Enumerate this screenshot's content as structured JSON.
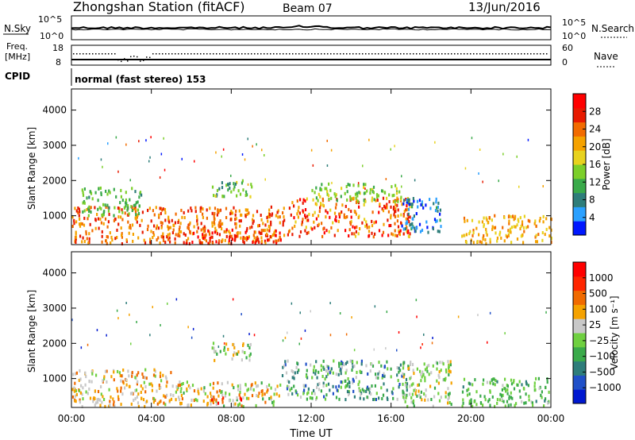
{
  "header": {
    "station": "Zhongshan Station (fitACF)",
    "beam": "Beam 07",
    "date": "13/Jun/2016"
  },
  "noise_panel": {
    "left_label": "N.Sky",
    "right_label": "N.Search",
    "left_ticks": [
      "10^5",
      "10^0"
    ],
    "right_ticks": [
      "10^5",
      "10^0"
    ]
  },
  "freq_panel": {
    "left_label_1": "Freq.",
    "left_label_2": "[MHz]",
    "right_label": "Nave",
    "left_ticks": [
      "18",
      "8"
    ],
    "right_ticks": [
      "60",
      "0"
    ]
  },
  "cpid": {
    "label": "CPID",
    "mode": "normal (fast stereo) 153"
  },
  "colors": {
    "power_scale": [
      "#0018ff",
      "#2aa0ff",
      "#2e7d7a",
      "#3aaa4a",
      "#7ccf2a",
      "#e8d21e",
      "#f5a200",
      "#f26b00",
      "#e81a00",
      "#ff0000"
    ],
    "velocity_scale": [
      "#0018d0",
      "#2050c8",
      "#2e7d7a",
      "#3aaa4a",
      "#6fd040",
      "#c8c8c8",
      "#f5a200",
      "#f06a00",
      "#ff2600",
      "#ff0000"
    ]
  },
  "chart_data": [
    {
      "type": "heatmap",
      "name": "power",
      "xlabel": "Time UT",
      "ylabel": "Slant Range [km]",
      "x_ticks": [
        "00:00",
        "04:00",
        "08:00",
        "12:00",
        "16:00",
        "20:00",
        "00:00"
      ],
      "x_tick_hours": [
        0,
        4,
        8,
        12,
        16,
        20,
        24
      ],
      "y_ticks": [
        "1000",
        "2000",
        "3000",
        "4000"
      ],
      "ylim": [
        180,
        4600
      ],
      "colorbar": {
        "label": "Power [dB]",
        "tick_labels": [
          "28",
          "24",
          "20",
          "16",
          "12",
          "8",
          "4"
        ],
        "range": [
          0,
          32
        ]
      },
      "echo_regions": [
        {
          "t0": 0.0,
          "t1": 11.0,
          "r0": 200,
          "r1": 1250,
          "level": 24,
          "scatter": 0.5
        },
        {
          "t0": 0.5,
          "t1": 3.5,
          "r0": 1000,
          "r1": 1800,
          "level": 12,
          "scatter": 0.3
        },
        {
          "t0": 5.5,
          "t1": 10.5,
          "r0": 200,
          "r1": 600,
          "level": 28,
          "scatter": 0.8
        },
        {
          "t0": 7.0,
          "t1": 9.0,
          "r0": 1500,
          "r1": 2000,
          "level": 12,
          "scatter": 0.6
        },
        {
          "t0": 11.0,
          "t1": 17.0,
          "r0": 400,
          "r1": 1500,
          "level": 24,
          "scatter": 0.7
        },
        {
          "t0": 12.0,
          "t1": 16.5,
          "r0": 1400,
          "r1": 1900,
          "level": 14,
          "scatter": 0.4
        },
        {
          "t0": 16.5,
          "t1": 18.5,
          "r0": 500,
          "r1": 1500,
          "level": 6,
          "scatter": 0.5
        },
        {
          "t0": 19.5,
          "t1": 24.0,
          "r0": 200,
          "r1": 1000,
          "level": 20,
          "scatter": 0.4
        }
      ]
    },
    {
      "type": "heatmap",
      "name": "velocity",
      "xlabel": "Time UT",
      "ylabel": "Slant Range [km]",
      "x_ticks": [
        "00:00",
        "04:00",
        "08:00",
        "12:00",
        "16:00",
        "20:00",
        "00:00"
      ],
      "x_tick_hours": [
        0,
        4,
        8,
        12,
        16,
        20,
        24
      ],
      "y_ticks": [
        "1000",
        "2000",
        "3000",
        "4000"
      ],
      "ylim": [
        180,
        4600
      ],
      "colorbar": {
        "label": "Velocity [m s⁻¹]",
        "tick_labels": [
          "1000",
          "500",
          "100",
          "25",
          "−25",
          "−100",
          "−500",
          "−1000"
        ],
        "range": [
          -1200,
          1200
        ]
      },
      "echo_regions": [
        {
          "t0": 0.0,
          "t1": 5.0,
          "r0": 200,
          "r1": 1250,
          "level": 300,
          "scatter": 0.5
        },
        {
          "t0": 5.0,
          "t1": 10.5,
          "r0": 200,
          "r1": 900,
          "level": 150,
          "scatter": 0.6
        },
        {
          "t0": 6.5,
          "t1": 8.5,
          "r0": 300,
          "r1": 500,
          "level": 900,
          "scatter": 0.7
        },
        {
          "t0": 7.0,
          "t1": 9.0,
          "r0": 1500,
          "r1": 2000,
          "level": 0,
          "scatter": 0.6
        },
        {
          "t0": 10.5,
          "t1": 17.0,
          "r0": 400,
          "r1": 1500,
          "level": -300,
          "scatter": 0.7
        },
        {
          "t0": 16.5,
          "t1": 19.0,
          "r0": 200,
          "r1": 1500,
          "level": -10,
          "scatter": 0.5
        },
        {
          "t0": 19.5,
          "t1": 24.0,
          "r0": 200,
          "r1": 1000,
          "level": -250,
          "scatter": 0.4
        }
      ]
    }
  ]
}
